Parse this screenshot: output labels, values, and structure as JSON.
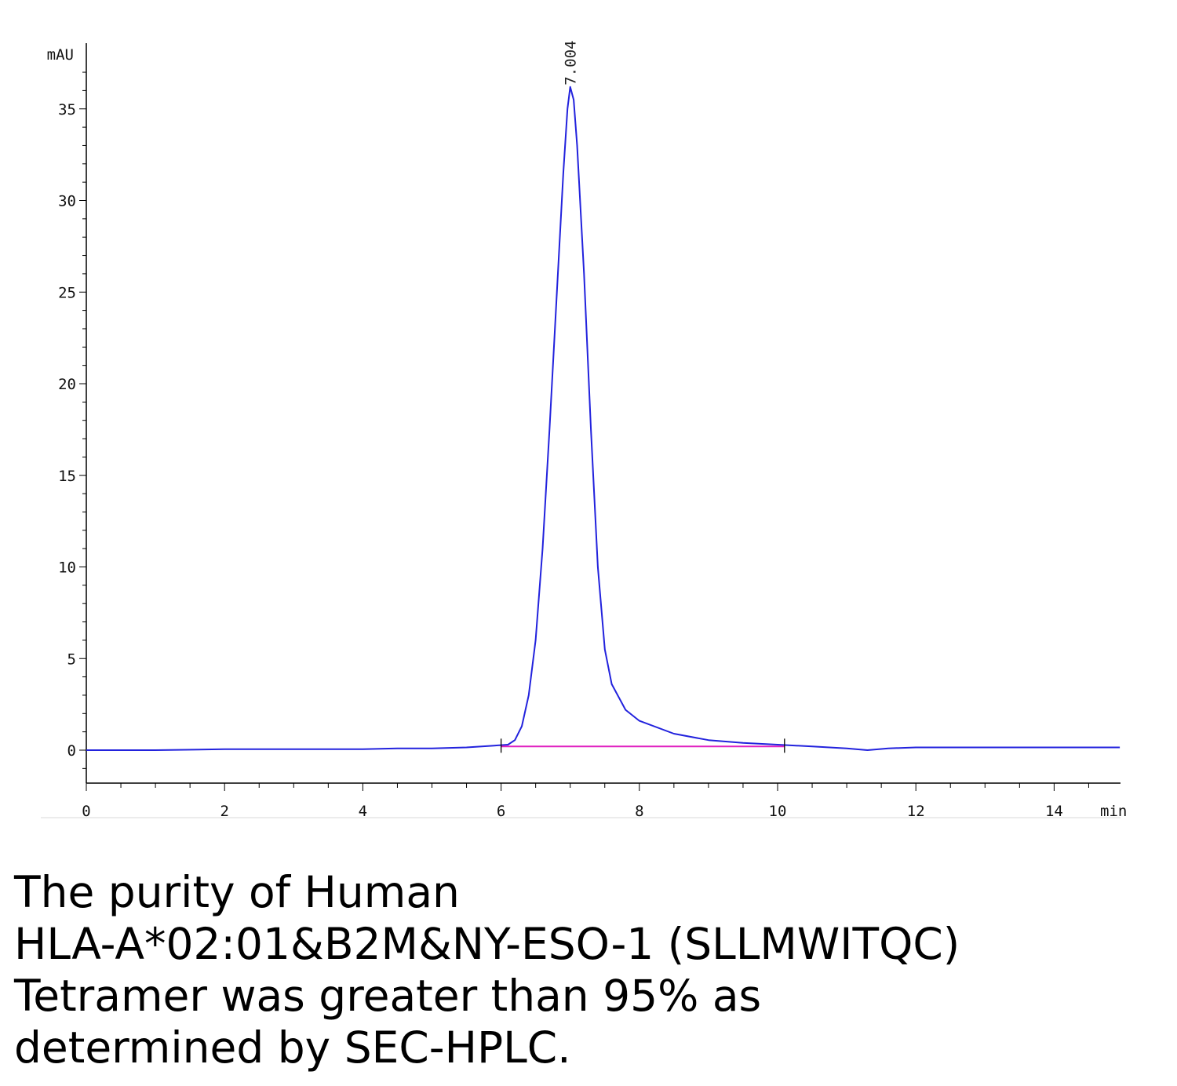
{
  "chart_data": {
    "type": "line",
    "xlabel": "min",
    "ylabel": "mAU",
    "xlim": [
      0,
      14.95
    ],
    "ylim": [
      -1.8,
      38
    ],
    "x_ticks": [
      0,
      2,
      4,
      6,
      8,
      10,
      12,
      14
    ],
    "y_ticks": [
      0,
      5,
      10,
      15,
      20,
      25,
      30,
      35
    ],
    "peak_label": "7.004",
    "series": [
      {
        "color": "#2222dd",
        "points": [
          [
            0,
            0
          ],
          [
            1,
            0.0
          ],
          [
            2,
            0.05
          ],
          [
            3,
            0.05
          ],
          [
            4,
            0.05
          ],
          [
            4.5,
            0.1
          ],
          [
            5,
            0.1
          ],
          [
            5.5,
            0.15
          ],
          [
            5.9,
            0.25
          ],
          [
            6.1,
            0.3
          ],
          [
            6.2,
            0.55
          ],
          [
            6.3,
            1.3
          ],
          [
            6.4,
            3.0
          ],
          [
            6.5,
            6.0
          ],
          [
            6.6,
            11
          ],
          [
            6.7,
            17.5
          ],
          [
            6.8,
            24.5
          ],
          [
            6.9,
            31.5
          ],
          [
            6.96,
            35
          ],
          [
            7.0,
            36.2
          ],
          [
            7.05,
            35.5
          ],
          [
            7.1,
            33
          ],
          [
            7.2,
            26
          ],
          [
            7.3,
            17.5
          ],
          [
            7.4,
            10
          ],
          [
            7.5,
            5.5
          ],
          [
            7.6,
            3.6
          ],
          [
            7.8,
            2.2
          ],
          [
            8.0,
            1.6
          ],
          [
            8.5,
            0.9
          ],
          [
            9.0,
            0.55
          ],
          [
            9.5,
            0.4
          ],
          [
            10.0,
            0.3
          ],
          [
            10.5,
            0.2
          ],
          [
            11.0,
            0.1
          ],
          [
            11.3,
            0.0
          ],
          [
            11.6,
            0.1
          ],
          [
            12,
            0.15
          ],
          [
            13,
            0.15
          ],
          [
            14,
            0.15
          ],
          [
            14.95,
            0.15
          ]
        ]
      },
      {
        "color": "#e020c0",
        "points": [
          [
            6.0,
            0.2
          ],
          [
            10.1,
            0.2
          ]
        ]
      }
    ],
    "integration_marks": [
      6.0,
      10.1
    ]
  },
  "caption": {
    "line1": "The purity of Human",
    "line2": "HLA-A*02:01&B2M&NY-ESO-1 (SLLMWITQC)",
    "line3": "Tetramer was greater than 95% as",
    "line4": "determined by SEC-HPLC."
  }
}
